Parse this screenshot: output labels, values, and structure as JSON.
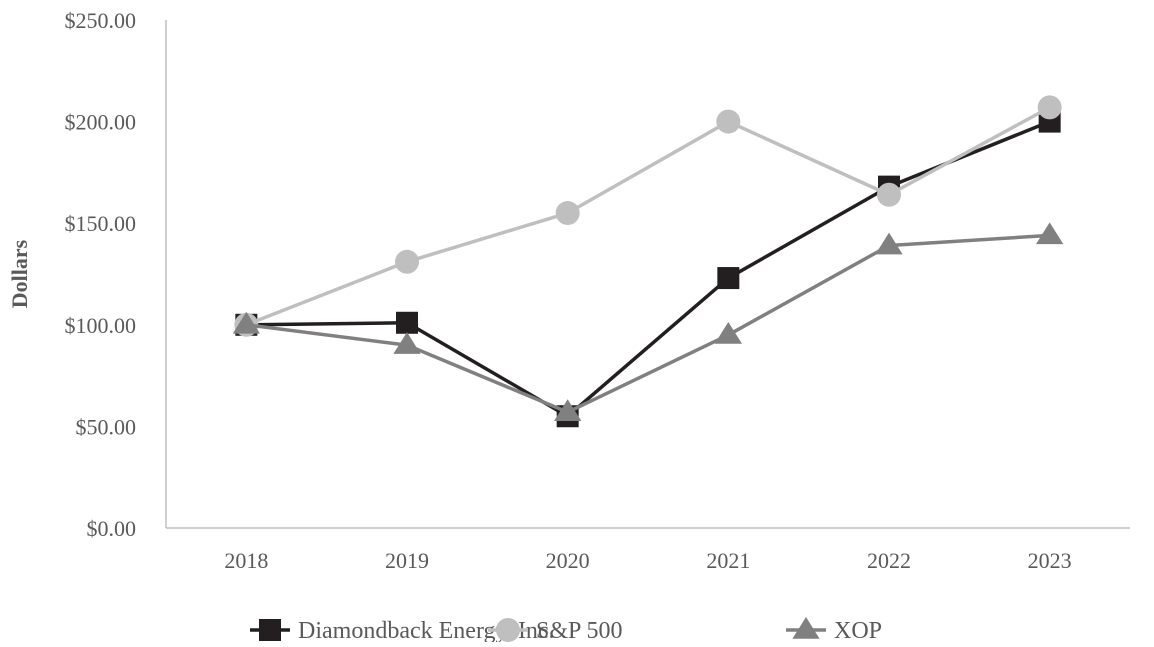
{
  "chart_data": {
    "type": "line",
    "ylabel": "Dollars",
    "xlabel": "",
    "categories": [
      "2018",
      "2019",
      "2020",
      "2021",
      "2022",
      "2023"
    ],
    "ylim": [
      0,
      250
    ],
    "yticks": [
      0,
      50,
      100,
      150,
      200,
      250
    ],
    "ytick_labels": [
      "$0.00",
      "$50.00",
      "$100.00",
      "$150.00",
      "$200.00",
      "$250.00"
    ],
    "grid": false,
    "legend_position": "bottom",
    "series": [
      {
        "name": "Diamondback Energy, Inc.",
        "values": [
          100,
          101,
          55,
          123,
          168,
          200
        ],
        "color": "#231f20",
        "marker": "square"
      },
      {
        "name": "S&P 500",
        "values": [
          100,
          131,
          155,
          200,
          164,
          207
        ],
        "color": "#bfbfbf",
        "marker": "circle"
      },
      {
        "name": "XOP",
        "values": [
          100,
          90,
          57,
          95,
          139,
          144
        ],
        "color": "#808080",
        "marker": "triangle"
      }
    ]
  }
}
